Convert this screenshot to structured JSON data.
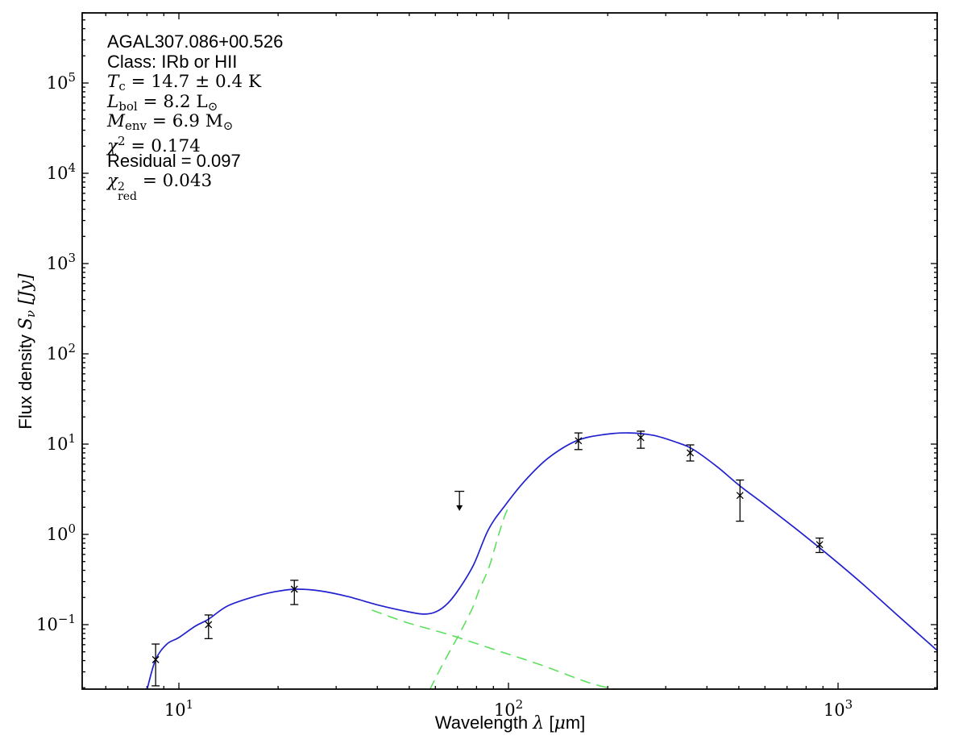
{
  "chart_data": {
    "type": "line",
    "title": "",
    "source_name": "AGAL307.086+00.526",
    "x_axis": {
      "scale": "log",
      "range_um": [
        5.1,
        2000
      ],
      "major_tick_exponents": [
        1,
        2,
        3
      ],
      "label_segments": [
        {
          "t": "Wavelength ",
          "s": "sans"
        },
        {
          "t": "λ",
          "s": "var"
        },
        {
          "t": " [",
          "s": "sans"
        },
        {
          "t": "μ",
          "s": "var"
        },
        {
          "t": "m]",
          "s": "sans"
        }
      ]
    },
    "y_axis": {
      "scale": "log",
      "range_jy": [
        0.019,
        600000
      ],
      "major_tick_exponents": [
        -1,
        0,
        1,
        2,
        3,
        4,
        5
      ],
      "label_segments": [
        {
          "t": "Flux density ",
          "s": "sans"
        },
        {
          "t": "S",
          "s": "var"
        },
        {
          "t": "ν",
          "s": "subvar"
        },
        {
          "t": " [Jy]",
          "s": "var"
        }
      ]
    },
    "annotation_lines": [
      {
        "font": "sans",
        "segs": [
          {
            "t": "AGAL307.086+00.526",
            "s": "sans"
          }
        ]
      },
      {
        "font": "sans",
        "segs": [
          {
            "t": "Class: IRb or HII",
            "s": "sans"
          }
        ]
      },
      {
        "font": "serif",
        "segs": [
          {
            "t": "T",
            "s": "var"
          },
          {
            "t": "c",
            "s": "sub"
          },
          {
            "t": " = 14.7 ± 0.4 K",
            "s": "plain"
          }
        ]
      },
      {
        "font": "serif",
        "segs": [
          {
            "t": "L",
            "s": "var"
          },
          {
            "t": "bol",
            "s": "sub"
          },
          {
            "t": " = 8.2 L",
            "s": "plain"
          },
          {
            "t": "⊙",
            "s": "sub"
          }
        ]
      },
      {
        "font": "serif",
        "segs": [
          {
            "t": "M",
            "s": "var"
          },
          {
            "t": "env",
            "s": "sub"
          },
          {
            "t": " = 6.9 M",
            "s": "plain"
          },
          {
            "t": "⊙",
            "s": "sub"
          }
        ]
      },
      {
        "font": "serif",
        "segs": [
          {
            "t": "χ",
            "s": "var"
          },
          {
            "t": "2",
            "s": "sup"
          },
          {
            "t": " = 0.174",
            "s": "plain"
          }
        ]
      },
      {
        "font": "sans",
        "segs": [
          {
            "t": "Residual = 0.097",
            "s": "sans"
          }
        ]
      },
      {
        "font": "serif",
        "segs": [
          {
            "t": "χ",
            "s": "var"
          },
          {
            "s": "stack",
            "sup": "2",
            "sub": "red"
          },
          {
            "t": " = 0.043",
            "s": "plain"
          }
        ]
      }
    ],
    "series": [
      {
        "name": "total-fit",
        "color": "#2121cf",
        "line_style": "solid",
        "points": [
          [
            8.0,
            0.019
          ],
          [
            8.5,
            0.041
          ],
          [
            9.2,
            0.061
          ],
          [
            10.0,
            0.072
          ],
          [
            11.2,
            0.096
          ],
          [
            12.3,
            0.115
          ],
          [
            14.0,
            0.16
          ],
          [
            16.6,
            0.2
          ],
          [
            19.6,
            0.232
          ],
          [
            22.6,
            0.247
          ],
          [
            26.7,
            0.237
          ],
          [
            32.5,
            0.205
          ],
          [
            40.7,
            0.163
          ],
          [
            49.6,
            0.139
          ],
          [
            55.4,
            0.131
          ],
          [
            60.3,
            0.139
          ],
          [
            65.6,
            0.174
          ],
          [
            71.4,
            0.26
          ],
          [
            78.6,
            0.47
          ],
          [
            86.9,
            1.13
          ],
          [
            97.2,
            2.05
          ],
          [
            112,
            3.9
          ],
          [
            132,
            7.0
          ],
          [
            161,
            10.9
          ],
          [
            196,
            12.8
          ],
          [
            232,
            13.3
          ],
          [
            275,
            12.5
          ],
          [
            325,
            10.4
          ],
          [
            364,
            8.7
          ],
          [
            430,
            5.6
          ],
          [
            504,
            3.44
          ],
          [
            603,
            2.1
          ],
          [
            755,
            1.11
          ],
          [
            946,
            0.57
          ],
          [
            1184,
            0.285
          ],
          [
            1483,
            0.136
          ],
          [
            1995,
            0.052
          ]
        ]
      },
      {
        "name": "cold-component",
        "color": "#5ce05c",
        "line_style": "dashed",
        "points": [
          [
            57.7,
            0.019
          ],
          [
            62,
            0.032
          ],
          [
            66,
            0.049
          ],
          [
            70,
            0.072
          ],
          [
            74,
            0.106
          ],
          [
            78,
            0.157
          ],
          [
            81.3,
            0.237
          ],
          [
            85.5,
            0.358
          ],
          [
            87.9,
            0.467
          ],
          [
            90.8,
            0.7
          ],
          [
            93.9,
            1.06
          ],
          [
            97.4,
            1.6
          ],
          [
            99.7,
            1.94
          ]
        ]
      },
      {
        "name": "hot-component",
        "color": "#5ce05c",
        "line_style": "dashed",
        "points": [
          [
            38.5,
            0.145
          ],
          [
            49,
            0.106
          ],
          [
            66.4,
            0.077
          ],
          [
            91.9,
            0.052
          ],
          [
            125,
            0.036
          ],
          [
            175,
            0.0228
          ],
          [
            210,
            0.0193
          ]
        ]
      }
    ],
    "data_points": [
      {
        "wavelength_um": 8.5,
        "flux_jy": 0.041,
        "flux_lo_jy": 0.021,
        "flux_hi_jy": 0.061
      },
      {
        "wavelength_um": 12.3,
        "flux_jy": 0.1,
        "flux_lo_jy": 0.07,
        "flux_hi_jy": 0.128
      },
      {
        "wavelength_um": 22.4,
        "flux_jy": 0.247,
        "flux_lo_jy": 0.167,
        "flux_hi_jy": 0.31
      },
      {
        "wavelength_um": 163,
        "flux_jy": 10.9,
        "flux_lo_jy": 8.7,
        "flux_hi_jy": 13.3
      },
      {
        "wavelength_um": 252,
        "flux_jy": 11.8,
        "flux_lo_jy": 9.0,
        "flux_hi_jy": 13.9
      },
      {
        "wavelength_um": 356,
        "flux_jy": 8.0,
        "flux_lo_jy": 6.5,
        "flux_hi_jy": 9.8
      },
      {
        "wavelength_um": 504,
        "flux_jy": 2.7,
        "flux_lo_jy": 1.4,
        "flux_hi_jy": 4.0
      },
      {
        "wavelength_um": 879,
        "flux_jy": 0.77,
        "flux_lo_jy": 0.63,
        "flux_hi_jy": 0.91
      }
    ],
    "upper_limit": {
      "wavelength_um": 71,
      "flux_jy": 3.0,
      "arrow_tip_jy": 2.1
    },
    "marker": "x",
    "colors": {
      "model_fit": "#2121cf",
      "components": "#5ce05c",
      "data": "#000000",
      "background": "#ffffff"
    }
  }
}
